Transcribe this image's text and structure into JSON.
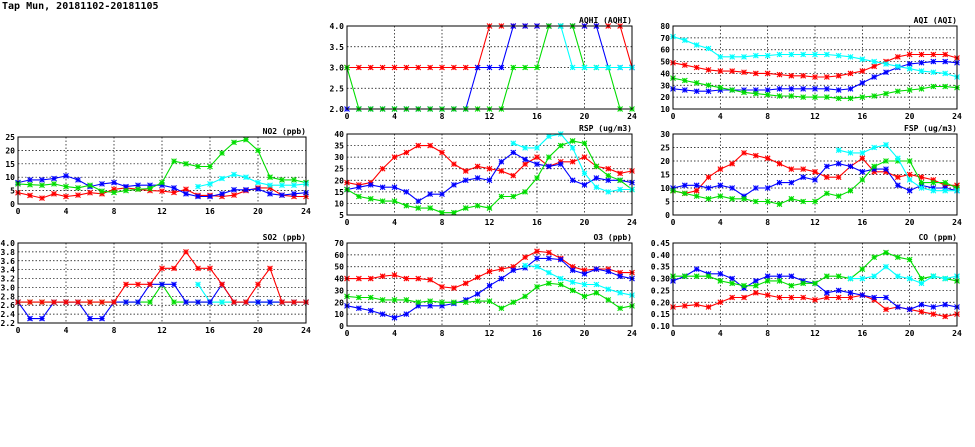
{
  "page_title": "Tap Mun, 20181102-20181105",
  "series_colors": [
    "#ff0000",
    "#0000ff",
    "#00dd00",
    "#00ffff"
  ],
  "chart_data": [
    {
      "id": "aqhi",
      "type": "line",
      "title": "AQHI (AQHI)",
      "xlim": [
        0,
        24
      ],
      "xticks": [
        "0",
        "4",
        "8",
        "12",
        "16",
        "20",
        "24"
      ],
      "ylim": [
        2.0,
        4.0
      ],
      "yticks": [
        "2.0",
        "2.5",
        "3.0",
        "3.5",
        "4.0"
      ],
      "series": [
        {
          "name": "red",
          "values": [
            3,
            3,
            3,
            3,
            3,
            3,
            3,
            3,
            3,
            3,
            3,
            3,
            4,
            4,
            4,
            4,
            4,
            4,
            4,
            4,
            4,
            4,
            4,
            4,
            3
          ]
        },
        {
          "name": "blue",
          "values": [
            2,
            2,
            2,
            2,
            2,
            2,
            2,
            2,
            2,
            2,
            2,
            3,
            3,
            3,
            4,
            4,
            4,
            4,
            4,
            4,
            4,
            4,
            3,
            3,
            3
          ]
        },
        {
          "name": "green",
          "values": [
            3,
            2,
            2,
            2,
            2,
            2,
            2,
            2,
            2,
            2,
            2,
            2,
            2,
            2,
            3,
            3,
            3,
            4,
            4,
            4,
            3,
            3,
            3,
            2,
            2
          ]
        },
        {
          "name": "cyan",
          "values": [
            null,
            null,
            null,
            null,
            null,
            null,
            null,
            null,
            null,
            null,
            null,
            null,
            null,
            null,
            null,
            null,
            null,
            null,
            4,
            3,
            3,
            3,
            3,
            3,
            3
          ]
        }
      ]
    },
    {
      "id": "aqi",
      "type": "line",
      "title": "AQI (AQI)",
      "xlim": [
        0,
        24
      ],
      "xticks": [
        "0",
        "4",
        "8",
        "12",
        "16",
        "20",
        "24"
      ],
      "ylim": [
        10,
        80
      ],
      "yticks": [
        "10",
        "20",
        "30",
        "40",
        "50",
        "60",
        "70",
        "80"
      ],
      "series": [
        {
          "name": "red",
          "values": [
            49,
            47,
            45,
            43,
            42,
            42,
            41,
            40,
            40,
            39,
            38,
            38,
            37,
            37,
            38,
            40,
            42,
            46,
            50,
            54,
            56,
            56,
            56,
            56,
            53
          ]
        },
        {
          "name": "blue",
          "values": [
            27,
            26,
            25,
            25,
            26,
            26,
            26,
            26,
            26,
            27,
            27,
            27,
            27,
            27,
            26,
            27,
            32,
            37,
            41,
            45,
            48,
            49,
            50,
            50,
            49
          ]
        },
        {
          "name": "green",
          "values": [
            36,
            34,
            32,
            30,
            28,
            26,
            24,
            23,
            22,
            21,
            21,
            20,
            20,
            20,
            19,
            19,
            20,
            21,
            23,
            25,
            26,
            27,
            29,
            29,
            28
          ]
        },
        {
          "name": "cyan",
          "values": [
            71,
            68,
            64,
            61,
            54,
            54,
            54,
            55,
            55,
            56,
            56,
            56,
            56,
            56,
            55,
            54,
            52,
            50,
            48,
            46,
            44,
            42,
            41,
            40,
            37
          ]
        }
      ]
    },
    {
      "id": "no2",
      "type": "line",
      "title": "NO2 (ppb)",
      "xlim": [
        0,
        24
      ],
      "xticks": [
        "0",
        "4",
        "8",
        "12",
        "16",
        "20",
        "24"
      ],
      "ylim": [
        0,
        25
      ],
      "yticks": [
        "0",
        "5",
        "10",
        "15",
        "20",
        "25"
      ],
      "series": [
        {
          "name": "red",
          "values": [
            4.2,
            3.2,
            2.2,
            3.8,
            2.8,
            3.3,
            4.2,
            3.8,
            5.5,
            6,
            5.5,
            5,
            4.8,
            4.3,
            5.5,
            3.2,
            3.2,
            2.8,
            3.3,
            5,
            6,
            6,
            3.3,
            2.8,
            2.8
          ]
        },
        {
          "name": "blue",
          "values": [
            8,
            9,
            9,
            9.5,
            10.5,
            9,
            6.5,
            7.5,
            8,
            6.5,
            7,
            7,
            7,
            6,
            3.8,
            2.8,
            2.8,
            3.8,
            5.3,
            5.3,
            5.6,
            3.8,
            3.3,
            3.8,
            4.2
          ]
        },
        {
          "name": "green",
          "values": [
            7.5,
            7.2,
            7,
            7.5,
            6.5,
            6,
            7,
            4.8,
            4.3,
            5,
            5.5,
            5.8,
            8,
            16,
            15,
            14,
            14,
            19,
            23,
            24,
            20,
            10,
            9,
            9,
            8
          ]
        },
        {
          "name": "cyan",
          "values": [
            null,
            null,
            null,
            null,
            null,
            null,
            null,
            null,
            null,
            null,
            null,
            null,
            null,
            null,
            null,
            6.5,
            7.5,
            9.5,
            11,
            10,
            8,
            7,
            7,
            7,
            7.5
          ]
        }
      ]
    },
    {
      "id": "rsp",
      "type": "line",
      "title": "RSP (ug/m3)",
      "xlim": [
        0,
        24
      ],
      "xticks": [
        "0",
        "4",
        "8",
        "12",
        "16",
        "20",
        "24"
      ],
      "ylim": [
        5,
        40
      ],
      "yticks": [
        "5",
        "10",
        "15",
        "20",
        "25",
        "30",
        "35",
        "40"
      ],
      "series": [
        {
          "name": "red",
          "values": [
            19,
            18,
            19,
            25,
            30,
            32,
            35,
            35,
            32,
            27,
            24,
            26,
            25,
            24,
            22,
            27,
            30,
            26,
            28,
            28,
            30,
            26,
            25,
            23,
            24
          ]
        },
        {
          "name": "blue",
          "values": [
            16,
            17,
            18,
            17,
            17,
            15,
            11,
            14,
            14,
            18,
            20,
            21,
            20,
            28,
            32,
            29,
            27,
            26,
            27,
            20,
            18,
            21,
            20,
            20,
            19
          ]
        },
        {
          "name": "green",
          "values": [
            16,
            13,
            12,
            11,
            11,
            9,
            8,
            8,
            6,
            6,
            8,
            9,
            8,
            13,
            13,
            15,
            21,
            30,
            35,
            37,
            36,
            26,
            22,
            20,
            16
          ]
        },
        {
          "name": "cyan",
          "values": [
            null,
            null,
            null,
            null,
            null,
            null,
            null,
            null,
            null,
            null,
            null,
            null,
            null,
            null,
            36,
            34,
            34,
            39,
            40,
            34,
            23,
            17,
            15,
            16,
            16
          ]
        }
      ]
    },
    {
      "id": "fsp",
      "type": "line",
      "title": "FSP (ug/m3)",
      "xlim": [
        0,
        24
      ],
      "xticks": [
        "0",
        "4",
        "8",
        "12",
        "16",
        "20",
        "24"
      ],
      "ylim": [
        0,
        30
      ],
      "yticks": [
        "0",
        "5",
        "10",
        "15",
        "20",
        "25",
        "30"
      ],
      "series": [
        {
          "name": "red",
          "values": [
            9,
            8,
            9,
            14,
            17,
            19,
            23,
            22,
            21,
            19,
            17,
            17,
            16,
            14,
            14,
            18,
            21,
            16,
            16,
            14,
            15,
            14,
            13,
            11,
            11
          ]
        },
        {
          "name": "blue",
          "values": [
            10,
            11,
            11,
            10,
            11,
            10,
            7,
            10,
            10,
            12,
            12,
            14,
            13,
            18,
            19,
            18,
            16,
            17,
            17,
            11,
            9,
            11,
            10,
            10,
            9
          ]
        },
        {
          "name": "green",
          "values": [
            9,
            8,
            7,
            6,
            7,
            6,
            6,
            5,
            5,
            4,
            6,
            5,
            5,
            8,
            7,
            9,
            13,
            18,
            20,
            20,
            20,
            12,
            12,
            12,
            10
          ]
        },
        {
          "name": "cyan",
          "values": [
            null,
            null,
            null,
            null,
            null,
            null,
            null,
            null,
            null,
            null,
            null,
            null,
            null,
            null,
            24,
            23,
            23,
            25,
            26,
            21,
            13,
            10,
            9,
            9,
            9
          ]
        }
      ]
    },
    {
      "id": "so2",
      "type": "line",
      "title": "SO2 (ppb)",
      "xlim": [
        0,
        24
      ],
      "xticks": [
        "0",
        "4",
        "8",
        "12",
        "16",
        "20",
        "24"
      ],
      "ylim": [
        2.2,
        4.0
      ],
      "yticks": [
        "2.2",
        "2.4",
        "2.6",
        "2.8",
        "3.0",
        "3.2",
        "3.4",
        "3.6",
        "3.8",
        "4.0"
      ],
      "series": [
        {
          "name": "green",
          "values": [
            2.67,
            2.67,
            2.67,
            2.67,
            2.67,
            2.67,
            2.67,
            2.67,
            2.67,
            2.67,
            2.67,
            2.67,
            3.07,
            2.67,
            2.67,
            2.67,
            2.67,
            2.67,
            2.67,
            2.67,
            2.67,
            2.67,
            2.67,
            2.67,
            2.67
          ]
        },
        {
          "name": "cyan",
          "values": [
            null,
            null,
            null,
            null,
            null,
            null,
            null,
            null,
            null,
            null,
            null,
            null,
            null,
            null,
            null,
            3.07,
            2.67,
            2.67,
            2.67,
            2.67,
            2.67,
            2.67,
            2.67,
            2.67,
            2.67
          ]
        },
        {
          "name": "blue",
          "values": [
            2.67,
            2.3,
            2.3,
            2.67,
            2.67,
            2.67,
            2.3,
            2.3,
            2.67,
            2.67,
            2.67,
            3.07,
            3.07,
            3.07,
            2.67,
            2.67,
            2.67,
            3.07,
            2.67,
            2.67,
            2.67,
            2.67,
            2.67,
            2.67,
            2.67
          ]
        },
        {
          "name": "red",
          "values": [
            2.67,
            2.67,
            2.67,
            2.67,
            2.67,
            2.67,
            2.67,
            2.67,
            2.67,
            3.07,
            3.07,
            3.07,
            3.43,
            3.43,
            3.8,
            3.43,
            3.43,
            3.07,
            2.67,
            2.67,
            3.07,
            3.43,
            2.67,
            2.67,
            2.67
          ]
        }
      ]
    },
    {
      "id": "o3",
      "type": "line",
      "title": "O3 (ppb)",
      "xlim": [
        0,
        24
      ],
      "xticks": [
        "0",
        "4",
        "8",
        "12",
        "16",
        "20",
        "24"
      ],
      "ylim": [
        0,
        70
      ],
      "yticks": [
        "0",
        "10",
        "20",
        "30",
        "40",
        "50",
        "60",
        "70"
      ],
      "series": [
        {
          "name": "red",
          "values": [
            40,
            40,
            40,
            42,
            43,
            40,
            40,
            39,
            33,
            32,
            36,
            41,
            46,
            48,
            50,
            58,
            63,
            62,
            57,
            50,
            47,
            48,
            48,
            45,
            45
          ]
        },
        {
          "name": "blue",
          "values": [
            17,
            15,
            13,
            10,
            7,
            10,
            17,
            17,
            17,
            19,
            22,
            27,
            34,
            40,
            47,
            49,
            57,
            57,
            56,
            47,
            44,
            48,
            46,
            42,
            40
          ]
        },
        {
          "name": "green",
          "values": [
            25,
            24,
            24,
            22,
            22,
            22,
            20,
            21,
            20,
            20,
            20,
            21,
            21,
            15,
            20,
            25,
            33,
            36,
            35,
            30,
            25,
            28,
            22,
            15,
            17
          ]
        },
        {
          "name": "cyan",
          "values": [
            null,
            null,
            null,
            null,
            null,
            null,
            null,
            null,
            null,
            null,
            null,
            null,
            null,
            null,
            null,
            51,
            50,
            45,
            40,
            37,
            35,
            35,
            31,
            28,
            26
          ]
        }
      ]
    },
    {
      "id": "co",
      "type": "line",
      "title": "CO (ppm)",
      "xlim": [
        0,
        24
      ],
      "xticks": [
        "0",
        "4",
        "8",
        "12",
        "16",
        "20",
        "24"
      ],
      "ylim": [
        0.1,
        0.45
      ],
      "yticks": [
        "0.10",
        "0.15",
        "0.20",
        "0.25",
        "0.30",
        "0.35",
        "0.40",
        "0.45"
      ],
      "series": [
        {
          "name": "red",
          "values": [
            0.18,
            0.185,
            0.19,
            0.18,
            0.2,
            0.22,
            0.22,
            0.24,
            0.23,
            0.22,
            0.22,
            0.22,
            0.21,
            0.22,
            0.22,
            0.22,
            0.23,
            0.21,
            0.17,
            0.18,
            0.17,
            0.16,
            0.15,
            0.14,
            0.15
          ]
        },
        {
          "name": "blue",
          "values": [
            0.29,
            0.31,
            0.34,
            0.32,
            0.32,
            0.3,
            0.26,
            0.29,
            0.31,
            0.31,
            0.31,
            0.29,
            0.28,
            0.24,
            0.25,
            0.24,
            0.23,
            0.22,
            0.22,
            0.18,
            0.17,
            0.19,
            0.18,
            0.19,
            0.18
          ]
        },
        {
          "name": "green",
          "values": [
            0.31,
            0.31,
            0.31,
            0.31,
            0.29,
            0.28,
            0.27,
            0.27,
            0.29,
            0.29,
            0.27,
            0.28,
            0.28,
            0.31,
            0.31,
            0.3,
            0.34,
            0.39,
            0.41,
            0.39,
            0.38,
            0.3,
            0.31,
            0.3,
            0.29
          ]
        },
        {
          "name": "cyan",
          "values": [
            null,
            null,
            null,
            null,
            null,
            null,
            null,
            null,
            null,
            null,
            null,
            null,
            null,
            null,
            null,
            0.3,
            0.3,
            0.31,
            0.35,
            0.31,
            0.3,
            0.28,
            0.31,
            0.3,
            0.31
          ]
        }
      ]
    }
  ]
}
